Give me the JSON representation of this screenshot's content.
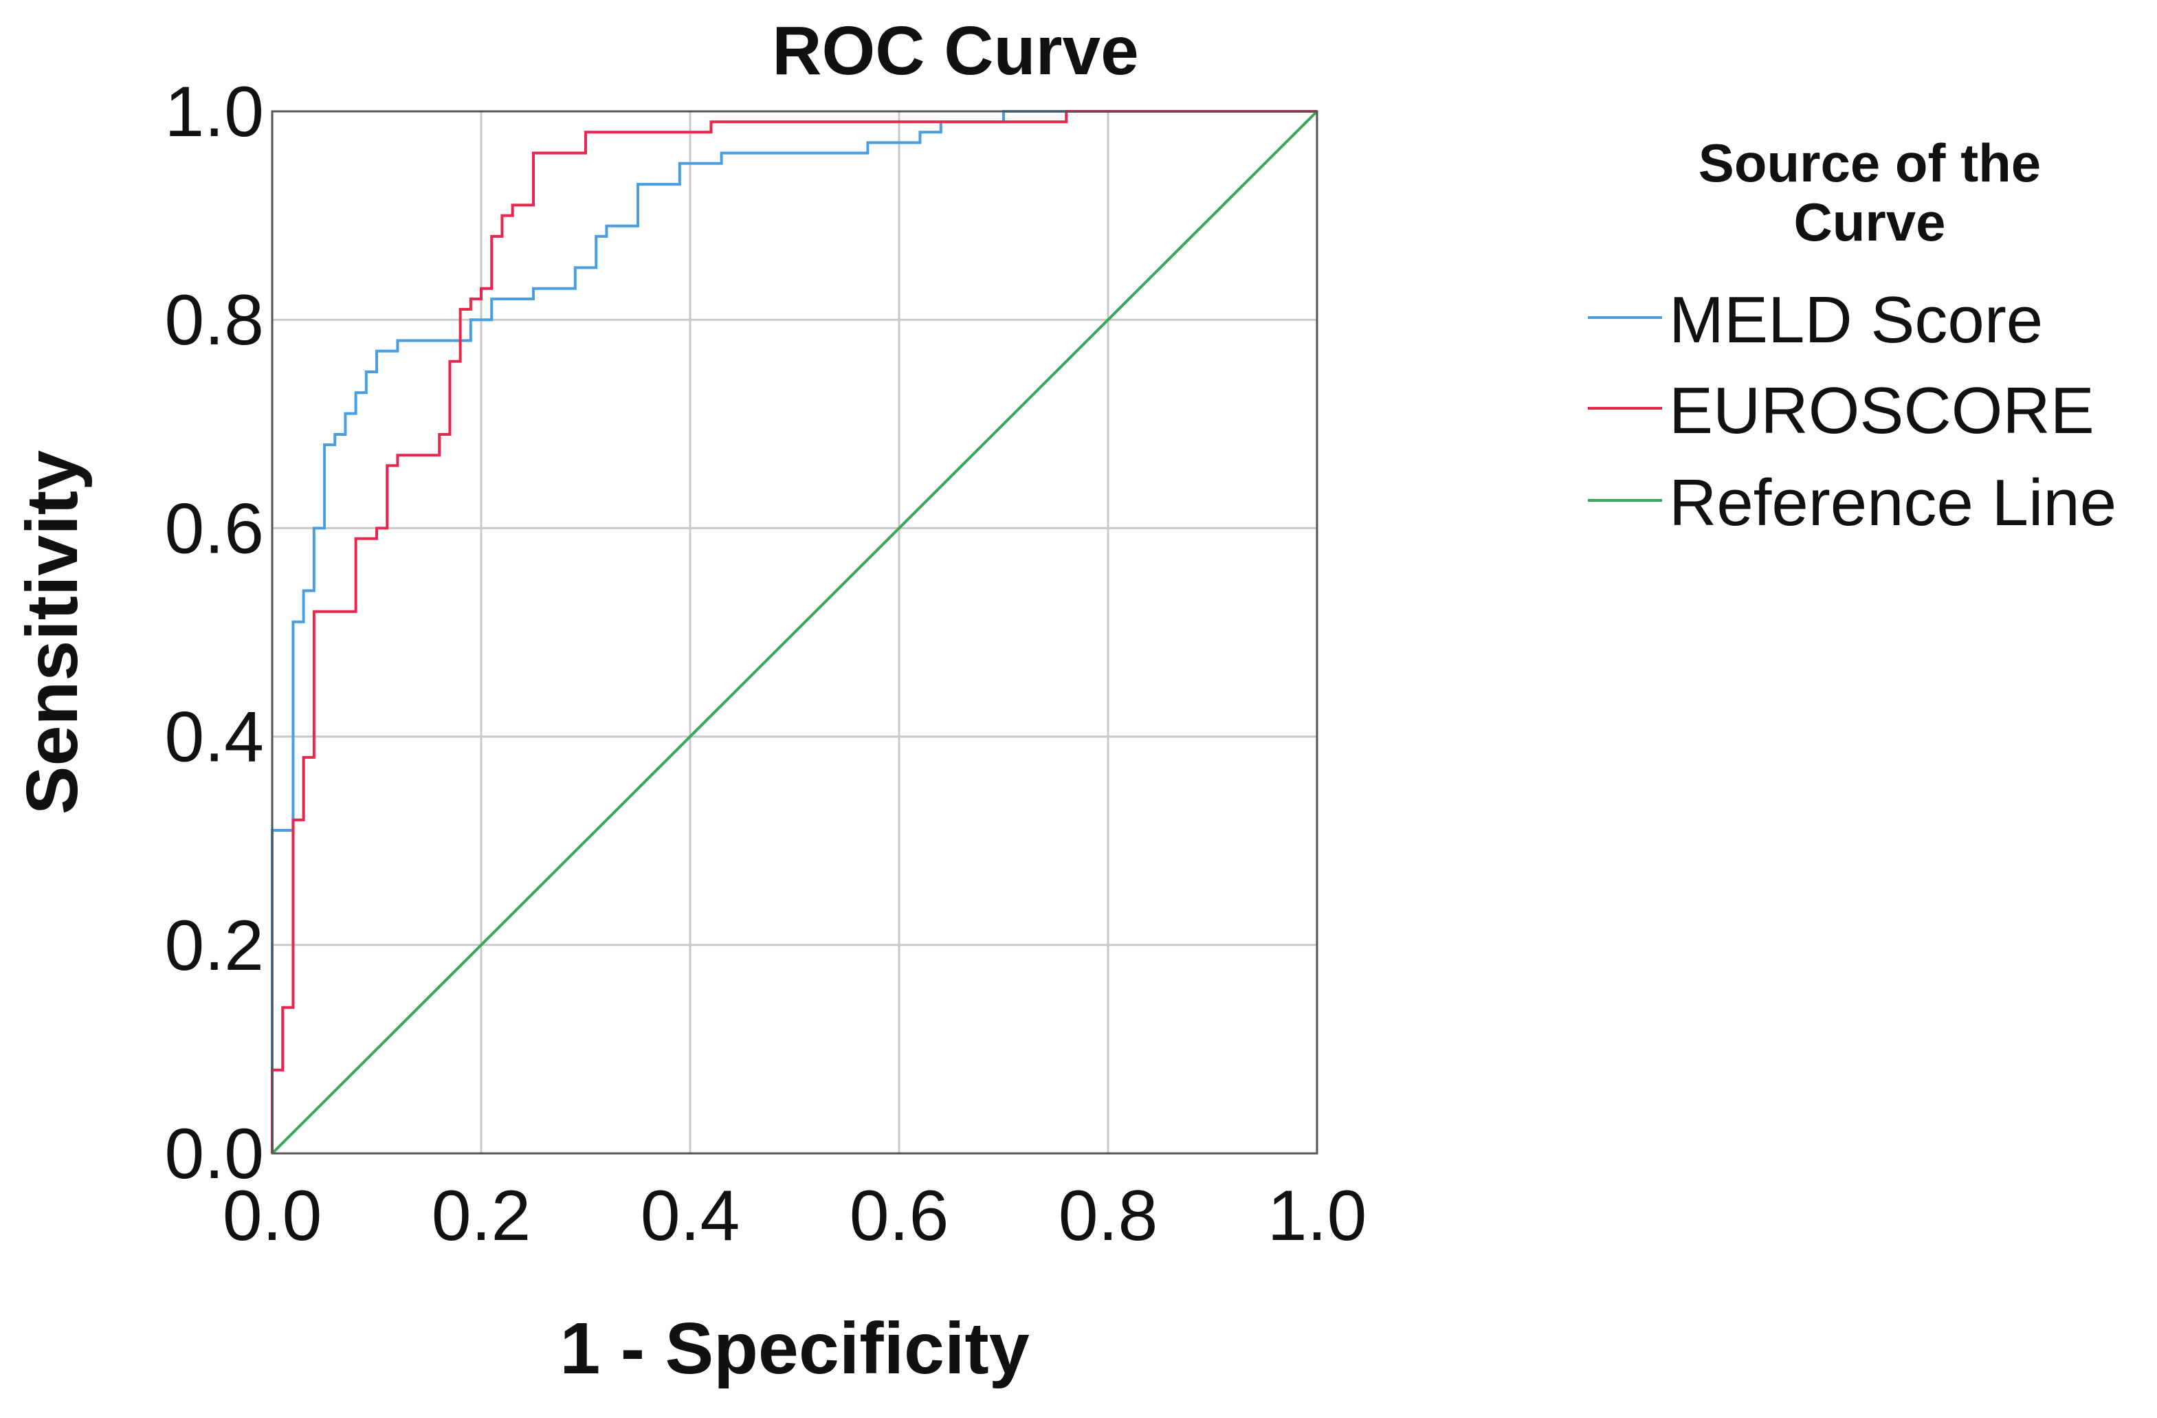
{
  "chart_data": {
    "type": "line",
    "title": "ROC Curve",
    "xlabel": "1 - Specificity",
    "ylabel": "Sensitivity",
    "xlim": [
      0,
      1
    ],
    "ylim": [
      0,
      1
    ],
    "grid": true,
    "x_ticks": [
      "0.0",
      "0.2",
      "0.4",
      "0.6",
      "0.8",
      "1.0"
    ],
    "y_ticks": [
      "0.0",
      "0.2",
      "0.4",
      "0.6",
      "0.8",
      "1.0"
    ],
    "legend": {
      "title": "Source of the Curve",
      "title_lines": [
        "Source of the",
        "Curve"
      ],
      "placement": "right"
    },
    "series": [
      {
        "name": "MELD Score",
        "color": "#4a9ee0",
        "step": true,
        "x": [
          0.0,
          0.0,
          0.02,
          0.02,
          0.03,
          0.03,
          0.04,
          0.04,
          0.05,
          0.05,
          0.06,
          0.06,
          0.07,
          0.07,
          0.08,
          0.08,
          0.09,
          0.09,
          0.1,
          0.1,
          0.12,
          0.12,
          0.19,
          0.19,
          0.21,
          0.21,
          0.25,
          0.25,
          0.29,
          0.29,
          0.31,
          0.31,
          0.32,
          0.32,
          0.35,
          0.35,
          0.39,
          0.39,
          0.43,
          0.43,
          0.57,
          0.57,
          0.62,
          0.62,
          0.64,
          0.64,
          0.7,
          0.7,
          1.0
        ],
        "y": [
          0.0,
          0.31,
          0.31,
          0.51,
          0.51,
          0.54,
          0.54,
          0.6,
          0.6,
          0.68,
          0.68,
          0.69,
          0.69,
          0.71,
          0.71,
          0.73,
          0.73,
          0.75,
          0.75,
          0.77,
          0.77,
          0.78,
          0.78,
          0.8,
          0.8,
          0.82,
          0.82,
          0.83,
          0.83,
          0.85,
          0.85,
          0.88,
          0.88,
          0.89,
          0.89,
          0.93,
          0.93,
          0.95,
          0.95,
          0.96,
          0.96,
          0.97,
          0.97,
          0.98,
          0.98,
          0.99,
          0.99,
          1.0,
          1.0
        ]
      },
      {
        "name": "EUROSCORE",
        "color": "#e8264e",
        "step": true,
        "x": [
          0.0,
          0.0,
          0.01,
          0.01,
          0.02,
          0.02,
          0.03,
          0.03,
          0.04,
          0.04,
          0.08,
          0.08,
          0.1,
          0.1,
          0.11,
          0.11,
          0.12,
          0.12,
          0.16,
          0.16,
          0.17,
          0.17,
          0.18,
          0.18,
          0.19,
          0.19,
          0.2,
          0.2,
          0.21,
          0.21,
          0.22,
          0.22,
          0.23,
          0.23,
          0.25,
          0.25,
          0.3,
          0.3,
          0.42,
          0.42,
          0.76,
          0.76,
          1.0
        ],
        "y": [
          0.0,
          0.08,
          0.08,
          0.14,
          0.14,
          0.32,
          0.32,
          0.38,
          0.38,
          0.52,
          0.52,
          0.59,
          0.59,
          0.6,
          0.6,
          0.66,
          0.66,
          0.67,
          0.67,
          0.69,
          0.69,
          0.76,
          0.76,
          0.81,
          0.81,
          0.82,
          0.82,
          0.83,
          0.83,
          0.88,
          0.88,
          0.9,
          0.9,
          0.91,
          0.91,
          0.96,
          0.96,
          0.98,
          0.98,
          0.99,
          0.99,
          1.0,
          1.0
        ]
      },
      {
        "name": "Reference Line",
        "color": "#3aa65c",
        "step": false,
        "x": [
          0.0,
          1.0
        ],
        "y": [
          0.0,
          1.0
        ]
      }
    ]
  }
}
